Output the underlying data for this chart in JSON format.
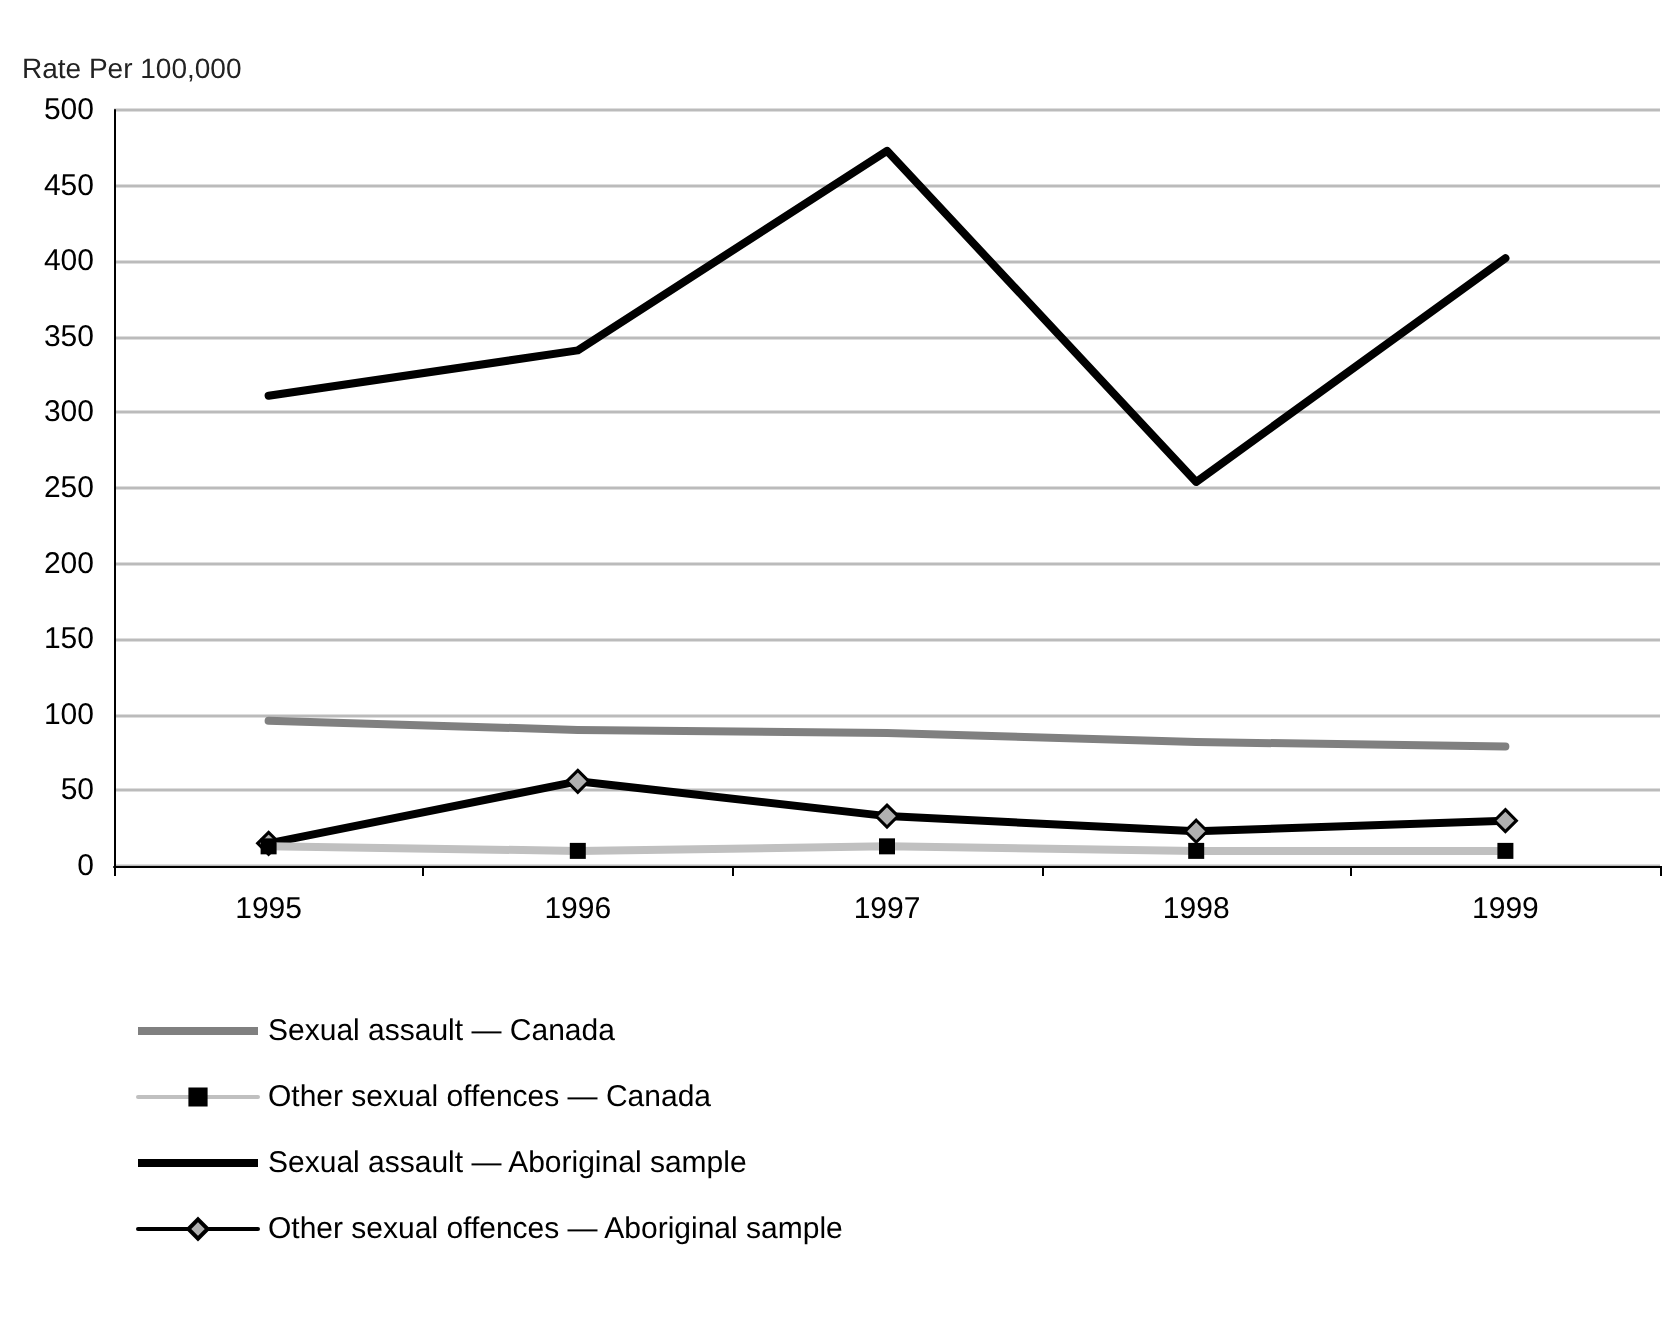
{
  "chart_data": {
    "type": "line",
    "ylabel": "Rate Per 100,000",
    "categories": [
      "1995",
      "1996",
      "1997",
      "1998",
      "1999"
    ],
    "series": [
      {
        "name": "Sexual assault — Canada",
        "color": "#808080",
        "marker": "none",
        "values": [
          96,
          90,
          88,
          82,
          79
        ]
      },
      {
        "name": "Other sexual offences — Canada",
        "color": "#c0c0c0",
        "marker": "square",
        "values": [
          13,
          10,
          13,
          10,
          10
        ]
      },
      {
        "name": "Sexual assault — Aboriginal sample",
        "color": "#000000",
        "marker": "none",
        "values": [
          311,
          341,
          473,
          254,
          402
        ]
      },
      {
        "name": "Other sexual offences — Aboriginal sample",
        "color": "#000000",
        "marker": "diamond",
        "values": [
          15,
          56,
          33,
          23,
          30
        ]
      }
    ],
    "ylim": [
      0,
      500
    ],
    "yticks": [
      0,
      50,
      100,
      150,
      200,
      250,
      300,
      350,
      400,
      450,
      500
    ],
    "grid": "y",
    "legend": "bottom left"
  }
}
